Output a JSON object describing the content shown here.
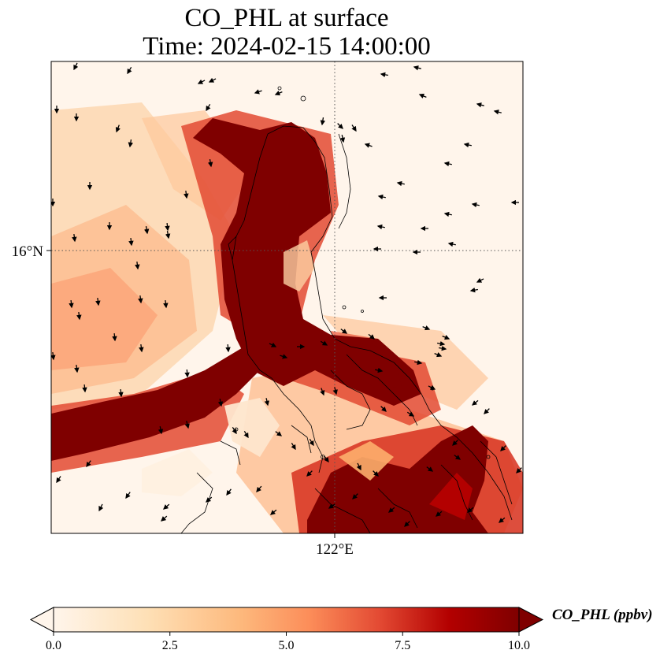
{
  "title": {
    "line1": "CO_PHL at surface",
    "line2": "Time: 2024-02-15 14:00:00"
  },
  "map": {
    "gridlines": "dotted",
    "lat_tick_label": "16°N",
    "lon_tick_label": "122°E",
    "colormap": [
      "#fff5eb",
      "#fee6ce",
      "#fdd0a2",
      "#fdae6b",
      "#fd8d3c",
      "#f16913",
      "#d94801",
      "#a63603",
      "#7f0000"
    ],
    "coastline_color": "#000000",
    "wind_vectors": true
  },
  "colorbar": {
    "label": "CO_PHL (ppbv)",
    "ticks": [
      "0.0",
      "2.5",
      "5.0",
      "7.5",
      "10.0"
    ],
    "min": 0,
    "max": 10,
    "extend": "both",
    "colors": [
      "#fff5eb",
      "#fdd49e",
      "#fdae6b",
      "#f16913",
      "#d7301f",
      "#b30000",
      "#7f0000"
    ]
  }
}
